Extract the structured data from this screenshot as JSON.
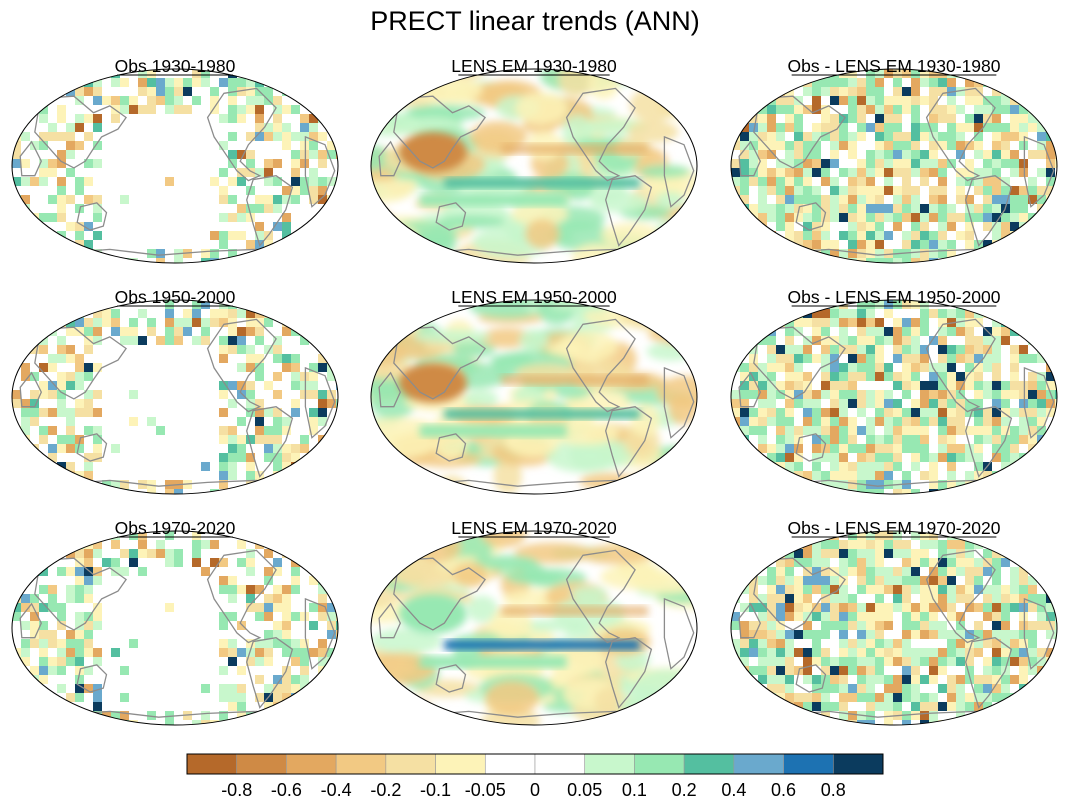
{
  "figure_title": "PRECT linear trends (ANN)",
  "chart_data": {
    "type": "map",
    "title": "PRECT linear trends (ANN)",
    "projection": "Robinson (Pacific-centered)",
    "layout": "3x3",
    "panels": [
      {
        "title": "Obs 1930-1980",
        "period": "1930-1980",
        "field": "observations"
      },
      {
        "title": "LENS EM 1930-1980",
        "period": "1930-1980",
        "field": "ensemble mean"
      },
      {
        "title": "Obs - LENS EM 1930-1980",
        "period": "1930-1980",
        "field": "difference"
      },
      {
        "title": "Obs 1950-2000",
        "period": "1950-2000",
        "field": "observations"
      },
      {
        "title": "LENS EM 1950-2000",
        "period": "1950-2000",
        "field": "ensemble mean"
      },
      {
        "title": "Obs - LENS EM 1950-2000",
        "period": "1950-2000",
        "field": "difference"
      },
      {
        "title": "Obs 1970-2020",
        "period": "1970-2020",
        "field": "observations"
      },
      {
        "title": "LENS EM 1970-2020",
        "period": "1970-2020",
        "field": "ensemble mean"
      },
      {
        "title": "Obs - LENS EM 1970-2020",
        "period": "1970-2020",
        "field": "difference"
      }
    ],
    "colorbar": {
      "levels": [
        -0.8,
        -0.6,
        -0.4,
        -0.2,
        -0.1,
        -0.05,
        0,
        0.05,
        0.1,
        0.2,
        0.4,
        0.6,
        0.8
      ],
      "tick_labels": [
        "-0.8",
        "-0.6",
        "-0.4",
        "-0.2",
        "-0.1",
        "-0.05",
        "0",
        "0.05",
        "0.1",
        "0.2",
        "0.4",
        "0.6",
        "0.8"
      ],
      "colors": [
        "#b5692a",
        "#cf8a45",
        "#e3a860",
        "#f2c983",
        "#f5e0a3",
        "#fdf3b8",
        "#ffffff",
        "#ffffff",
        "#c8f7cc",
        "#97e8b2",
        "#54bfa0",
        "#6aa9cd",
        "#1d72b2",
        "#0b3b5e"
      ]
    }
  }
}
